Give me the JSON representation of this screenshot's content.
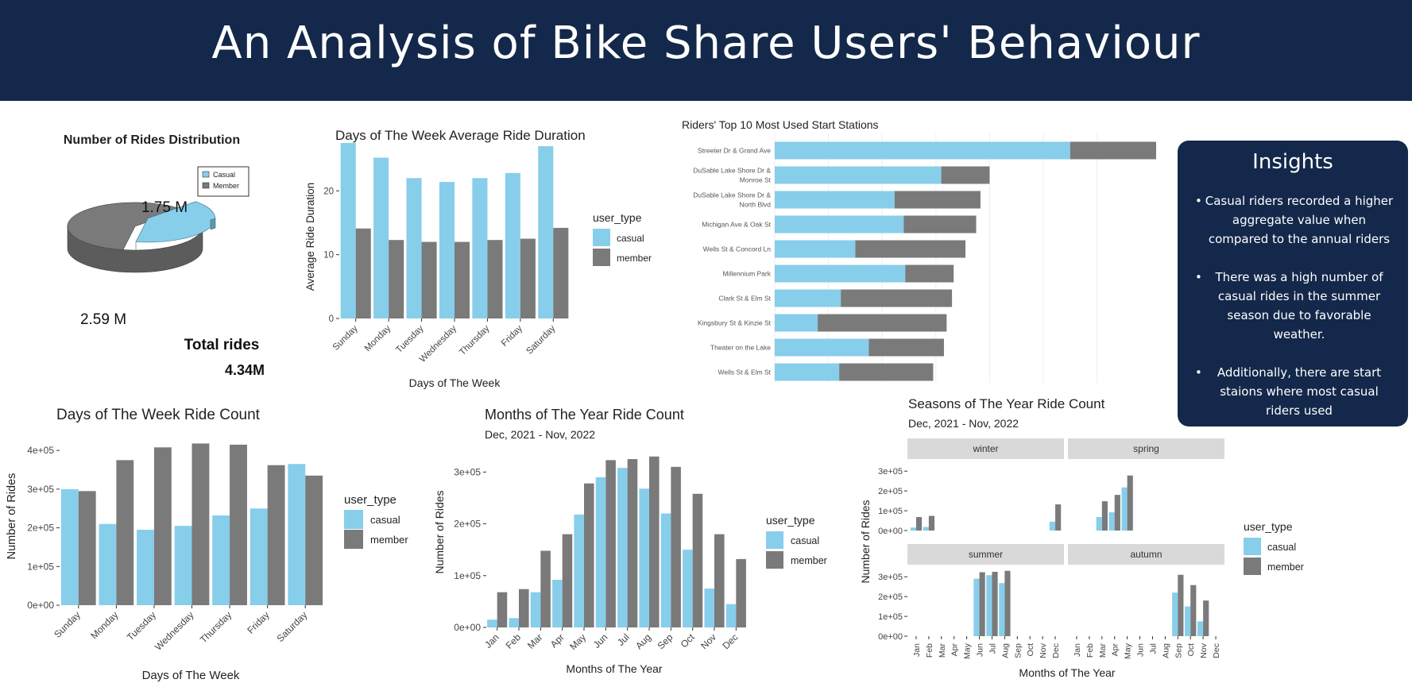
{
  "header": {
    "title": "An Analysis of Bike Share Users' Behaviour"
  },
  "colors": {
    "casual": "#87ceeb",
    "member": "#7a7a7a",
    "navy": "#13284a"
  },
  "legend": {
    "title": "user_type",
    "casual": "casual",
    "member": "member"
  },
  "insights": {
    "heading": "Insights",
    "bullets": [
      "Casual riders recorded a higher aggregate value when compared to the annual riders",
      "There was a high number of casual rides in the summer season due to favorable weather.",
      "Additionally, there are start staions where most casual riders used"
    ]
  },
  "chart_data": [
    {
      "type": "pie",
      "title": "Number of Rides Distribution",
      "legend": [
        "Casual",
        "Member"
      ],
      "slices": [
        {
          "label": "Casual",
          "value": 1.75,
          "text": "1.75 M"
        },
        {
          "label": "Member",
          "value": 2.59,
          "text": "2.59 M"
        }
      ],
      "total_label": "Total rides",
      "total_value": "4.34M"
    },
    {
      "type": "bar",
      "title": "Days of The Week Average Ride Duration",
      "xlabel": "Days of The Week",
      "ylabel": "Average Ride Duration",
      "categories": [
        "Sunday",
        "Monday",
        "Tuesday",
        "Wednesday",
        "Thursday",
        "Friday",
        "Saturday"
      ],
      "yticks": [
        "0",
        "10",
        "20"
      ],
      "ylim": [
        0,
        28.5
      ],
      "series": [
        {
          "name": "casual",
          "values": [
            27.5,
            25.2,
            22.0,
            21.4,
            22.0,
            22.8,
            27.0
          ]
        },
        {
          "name": "member",
          "values": [
            14.1,
            12.3,
            12.0,
            12.0,
            12.3,
            12.5,
            14.2
          ]
        }
      ]
    },
    {
      "type": "bar",
      "title": "Riders' Top 10 Most Used Start Stations",
      "orientation": "horizontal-stacked",
      "categories": [
        "Streeter Dr & Grand Ave",
        "DuSable Lake Shore Dr & Monroe St",
        "DuSable Lake Shore Dr & North Blvd",
        "Michigan Ave & Oak St",
        "Wells St & Concord Ln",
        "Millennium Park",
        "Clark St & Elm St",
        "Kingsbury St & Kinzie St",
        "Theater on the Lake",
        "Wells St & Elm St"
      ],
      "category_lines": [
        [
          "Streeter Dr & Grand Ave"
        ],
        [
          "DuSable Lake Shore Dr &",
          "Monroe St"
        ],
        [
          "DuSable Lake Shore Dr &",
          "North Blvd"
        ],
        [
          "Michigan Ave & Oak St"
        ],
        [
          "Wells St & Concord Ln"
        ],
        [
          "Millennium Park"
        ],
        [
          "Clark St & Elm St"
        ],
        [
          "Kingsbury St & Kinzie St"
        ],
        [
          "Theater on the Lake"
        ],
        [
          "Wells St & Elm St"
        ]
      ],
      "xlim": [
        0,
        71
      ],
      "series": [
        {
          "name": "casual",
          "values": [
            55,
            31,
            22.3,
            24,
            15,
            24.3,
            12.3,
            8,
            17.5,
            12
          ]
        },
        {
          "name": "member",
          "values": [
            16,
            9,
            16,
            13.5,
            20.5,
            9,
            20.7,
            24,
            14,
            17.5
          ]
        }
      ]
    },
    {
      "type": "bar",
      "title": "Days of The Week Ride Count",
      "xlabel": "Days of The Week",
      "ylabel": "Number of Rides",
      "categories": [
        "Sunday",
        "Monday",
        "Tuesday",
        "Wednesday",
        "Thursday",
        "Friday",
        "Saturday"
      ],
      "yticks": [
        "0e+00",
        "1e+05",
        "2e+05",
        "3e+05",
        "4e+05"
      ],
      "ylim": [
        0,
        425000
      ],
      "series": [
        {
          "name": "casual",
          "values": [
            300000,
            210000,
            195000,
            205000,
            232000,
            250000,
            365000
          ]
        },
        {
          "name": "member",
          "values": [
            295000,
            375000,
            408000,
            418000,
            415000,
            362000,
            335000
          ]
        }
      ]
    },
    {
      "type": "bar",
      "title": "Months of The Year Ride Count",
      "subtitle": "Dec, 2021 - Nov, 2022",
      "xlabel": "Months of The Year",
      "ylabel": "Number of Rides",
      "categories": [
        "Jan",
        "Feb",
        "Mar",
        "Apr",
        "May",
        "Jun",
        "Jul",
        "Aug",
        "Sep",
        "Oct",
        "Nov",
        "Dec"
      ],
      "yticks": [
        "0e+00",
        "1e+05",
        "2e+05",
        "3e+05"
      ],
      "ylim": [
        0,
        345000
      ],
      "series": [
        {
          "name": "casual",
          "values": [
            15000,
            18000,
            68000,
            92000,
            218000,
            290000,
            308000,
            268000,
            220000,
            150000,
            75000,
            45000
          ]
        },
        {
          "name": "member",
          "values": [
            68000,
            74000,
            148000,
            180000,
            278000,
            323000,
            325000,
            330000,
            310000,
            258000,
            180000,
            132000
          ]
        }
      ]
    },
    {
      "type": "bar",
      "title": "Seasons of The Year Ride Count",
      "subtitle": "Dec, 2021 - Nov, 2022",
      "xlabel": "Months of The Year",
      "ylabel": "Number of Rides",
      "months": [
        "Jan",
        "Feb",
        "Mar",
        "Apr",
        "May",
        "Jun",
        "Jul",
        "Aug",
        "Sep",
        "Oct",
        "Nov",
        "Dec"
      ],
      "yticks": [
        "0e+00",
        "1e+05",
        "2e+05",
        "3e+05"
      ],
      "ylim": [
        0,
        345000
      ],
      "facets": [
        {
          "name": "winter",
          "months": [
            "Jan",
            "Feb",
            "Dec"
          ],
          "casual": [
            15000,
            18000,
            45000
          ],
          "member": [
            68000,
            74000,
            132000
          ]
        },
        {
          "name": "spring",
          "months": [
            "Mar",
            "Apr",
            "May"
          ],
          "casual": [
            68000,
            92000,
            218000
          ],
          "member": [
            148000,
            180000,
            278000
          ]
        },
        {
          "name": "summer",
          "months": [
            "Jun",
            "Jul",
            "Aug"
          ],
          "casual": [
            290000,
            308000,
            268000
          ],
          "member": [
            323000,
            325000,
            330000
          ]
        },
        {
          "name": "autumn",
          "months": [
            "Sep",
            "Oct",
            "Nov"
          ],
          "casual": [
            220000,
            150000,
            75000
          ],
          "member": [
            310000,
            258000,
            180000
          ]
        }
      ]
    }
  ]
}
